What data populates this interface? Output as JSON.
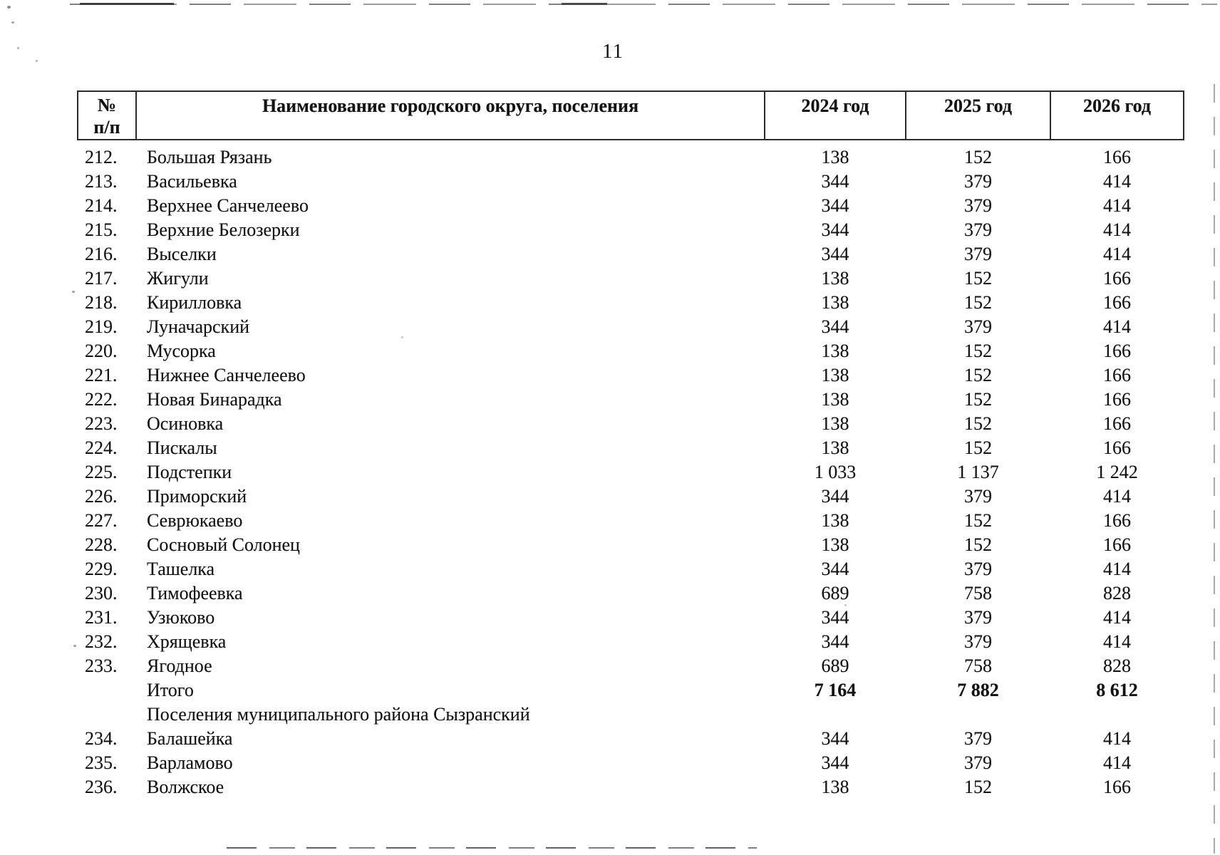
{
  "page_number": "11",
  "table": {
    "header": {
      "num_line1": "№",
      "num_line2": "п/п",
      "name": "Наименование городского округа, поселения",
      "y2024": "2024 год",
      "y2025": "2025 год",
      "y2026": "2026 год"
    },
    "rows": [
      {
        "num": "212.",
        "name": "Большая Рязань",
        "v2024": "138",
        "v2025": "152",
        "v2026": "166",
        "type": "data"
      },
      {
        "num": "213.",
        "name": "Васильевка",
        "v2024": "344",
        "v2025": "379",
        "v2026": "414",
        "type": "data"
      },
      {
        "num": "214.",
        "name": "Верхнее Санчелеево",
        "v2024": "344",
        "v2025": "379",
        "v2026": "414",
        "type": "data"
      },
      {
        "num": "215.",
        "name": "Верхние Белозерки",
        "v2024": "344",
        "v2025": "379",
        "v2026": "414",
        "type": "data"
      },
      {
        "num": "216.",
        "name": "Выселки",
        "v2024": "344",
        "v2025": "379",
        "v2026": "414",
        "type": "data"
      },
      {
        "num": "217.",
        "name": "Жигули",
        "v2024": "138",
        "v2025": "152",
        "v2026": "166",
        "type": "data"
      },
      {
        "num": "218.",
        "name": "Кирилловка",
        "v2024": "138",
        "v2025": "152",
        "v2026": "166",
        "type": "data"
      },
      {
        "num": "219.",
        "name": "Луначарский",
        "v2024": "344",
        "v2025": "379",
        "v2026": "414",
        "type": "data"
      },
      {
        "num": "220.",
        "name": "Мусорка",
        "v2024": "138",
        "v2025": "152",
        "v2026": "166",
        "type": "data"
      },
      {
        "num": "221.",
        "name": "Нижнее Санчелеево",
        "v2024": "138",
        "v2025": "152",
        "v2026": "166",
        "type": "data"
      },
      {
        "num": "222.",
        "name": "Новая Бинарадка",
        "v2024": "138",
        "v2025": "152",
        "v2026": "166",
        "type": "data"
      },
      {
        "num": "223.",
        "name": "Осиновка",
        "v2024": "138",
        "v2025": "152",
        "v2026": "166",
        "type": "data"
      },
      {
        "num": "224.",
        "name": "Пискалы",
        "v2024": "138",
        "v2025": "152",
        "v2026": "166",
        "type": "data"
      },
      {
        "num": "225.",
        "name": "Подстепки",
        "v2024": "1 033",
        "v2025": "1 137",
        "v2026": "1 242",
        "type": "data"
      },
      {
        "num": "226.",
        "name": "Приморский",
        "v2024": "344",
        "v2025": "379",
        "v2026": "414",
        "type": "data"
      },
      {
        "num": "227.",
        "name": "Севрюкаево",
        "v2024": "138",
        "v2025": "152",
        "v2026": "166",
        "type": "data"
      },
      {
        "num": "228.",
        "name": "Сосновый Солонец",
        "v2024": "138",
        "v2025": "152",
        "v2026": "166",
        "type": "data"
      },
      {
        "num": "229.",
        "name": "Ташелка",
        "v2024": "344",
        "v2025": "379",
        "v2026": "414",
        "type": "data"
      },
      {
        "num": "230.",
        "name": "Тимофеевка",
        "v2024": "689",
        "v2025": "758",
        "v2026": "828",
        "type": "data"
      },
      {
        "num": "231.",
        "name": "Узюково",
        "v2024": "344",
        "v2025": "379",
        "v2026": "414",
        "type": "data"
      },
      {
        "num": "232.",
        "name": "Хрящевка",
        "v2024": "344",
        "v2025": "379",
        "v2026": "414",
        "type": "data"
      },
      {
        "num": "233.",
        "name": "Ягодное",
        "v2024": "689",
        "v2025": "758",
        "v2026": "828",
        "type": "data"
      },
      {
        "num": "",
        "name": "Итого",
        "v2024": "7 164",
        "v2025": "7 882",
        "v2026": "8 612",
        "type": "total"
      },
      {
        "num": "",
        "name": "Поселения муниципального района Сызранский",
        "v2024": "",
        "v2025": "",
        "v2026": "",
        "type": "section"
      },
      {
        "num": "234.",
        "name": "Балашейка",
        "v2024": "344",
        "v2025": "379",
        "v2026": "414",
        "type": "data"
      },
      {
        "num": "235.",
        "name": "Варламово",
        "v2024": "344",
        "v2025": "379",
        "v2026": "414",
        "type": "data"
      },
      {
        "num": "236.",
        "name": "Волжское",
        "v2024": "138",
        "v2025": "152",
        "v2026": "166",
        "type": "data"
      }
    ]
  }
}
